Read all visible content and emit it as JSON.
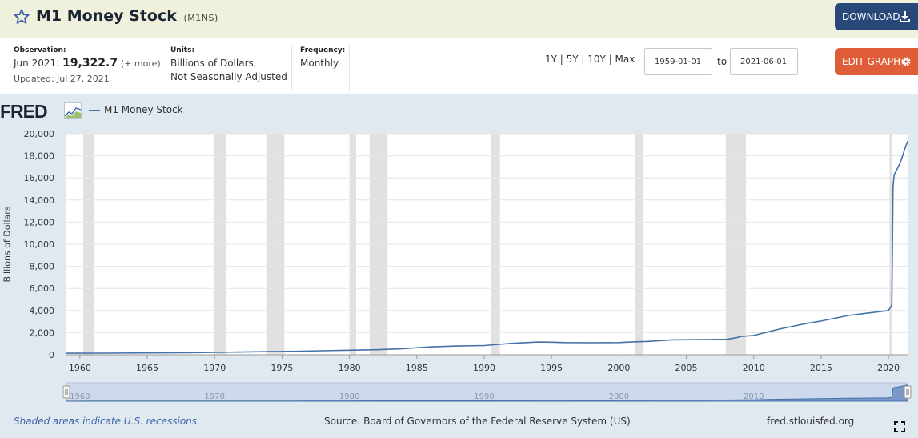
{
  "header": {
    "title": "M1 Money Stock",
    "series_id": "(M1NS)",
    "download_label": "DOWNLOAD"
  },
  "meta": {
    "observation_label": "Observation:",
    "observation_date": "Jun 2021:",
    "observation_value": "19,322.7",
    "observation_more": "(+ more)",
    "updated": "Updated: Jul 27, 2021",
    "units_label": "Units:",
    "units_line1": "Billions of Dollars,",
    "units_line2": "Not Seasonally Adjusted",
    "frequency_label": "Frequency:",
    "frequency_value": "Monthly",
    "range_links": "1Y | 5Y | 10Y | Max",
    "start_date": "1959-01-01",
    "to_label": "to",
    "end_date": "2021-06-01",
    "edit_label": "EDIT GRAPH"
  },
  "footer": {
    "note": "Shaded areas indicate U.S. recessions.",
    "source": "Source: Board of Governors of the Federal Reserve System (US)",
    "site": "fred.stlouisfed.org"
  },
  "colors": {
    "series": "#4572a7",
    "recession": "#e1e1e1",
    "header_bg": "#f0f1dc",
    "panel_bg": "#e1e9f0",
    "download_btn": "#29487a",
    "edit_btn": "#e05d3a"
  },
  "icons": [
    "star-icon",
    "download-icon",
    "gear-icon",
    "fred-logo-chart-icon",
    "expand-icon"
  ],
  "chart_data": {
    "type": "line",
    "logo": "FRED",
    "legend": [
      "M1 Money Stock"
    ],
    "ylabel": "Billions of Dollars",
    "xlabel": "",
    "xlim": [
      1959.0,
      2021.42
    ],
    "ylim": [
      0,
      20000
    ],
    "yticks": [
      0,
      2000,
      4000,
      6000,
      8000,
      10000,
      12000,
      14000,
      16000,
      18000,
      20000
    ],
    "ytick_labels": [
      "0",
      "2,000",
      "4,000",
      "6,000",
      "8,000",
      "10,000",
      "12,000",
      "14,000",
      "16,000",
      "18,000",
      "20,000"
    ],
    "xticks": [
      1960,
      1965,
      1970,
      1975,
      1980,
      1985,
      1990,
      1995,
      2000,
      2005,
      2010,
      2015,
      2020
    ],
    "navigator_ticks": [
      1960,
      1970,
      1980,
      1990,
      2000,
      2010
    ],
    "grid": true,
    "recessions": [
      [
        1960.25,
        1961.08
      ],
      [
        1969.92,
        1970.83
      ],
      [
        1973.83,
        1975.17
      ],
      [
        1980.0,
        1980.5
      ],
      [
        1981.5,
        1982.83
      ],
      [
        1990.5,
        1991.17
      ],
      [
        2001.17,
        2001.83
      ],
      [
        2007.92,
        2009.42
      ],
      [
        2020.08,
        2020.25
      ]
    ],
    "series": [
      {
        "name": "M1 Money Stock",
        "x": [
          1959.0,
          1962,
          1965,
          1968,
          1970,
          1972,
          1974,
          1976,
          1978,
          1980,
          1982,
          1984,
          1986,
          1988,
          1990,
          1992,
          1994,
          1995,
          1996,
          1998,
          2000,
          2001,
          2002,
          2004,
          2006,
          2008,
          2008.75,
          2009,
          2010,
          2011,
          2012,
          2013,
          2014,
          2015,
          2016,
          2017,
          2018,
          2019,
          2020.0,
          2020.25,
          2020.34,
          2020.42,
          2020.6,
          2020.8,
          2021.0,
          2021.2,
          2021.42
        ],
        "y": [
          140,
          145,
          165,
          190,
          215,
          250,
          280,
          310,
          360,
          410,
          460,
          550,
          710,
          790,
          830,
          1030,
          1150,
          1140,
          1100,
          1090,
          1100,
          1170,
          1200,
          1350,
          1370,
          1400,
          1550,
          1650,
          1750,
          2050,
          2350,
          2600,
          2850,
          3050,
          3300,
          3550,
          3700,
          3850,
          4000,
          4500,
          15200,
          16300,
          16700,
          17200,
          17800,
          18600,
          19322.7
        ]
      }
    ]
  }
}
